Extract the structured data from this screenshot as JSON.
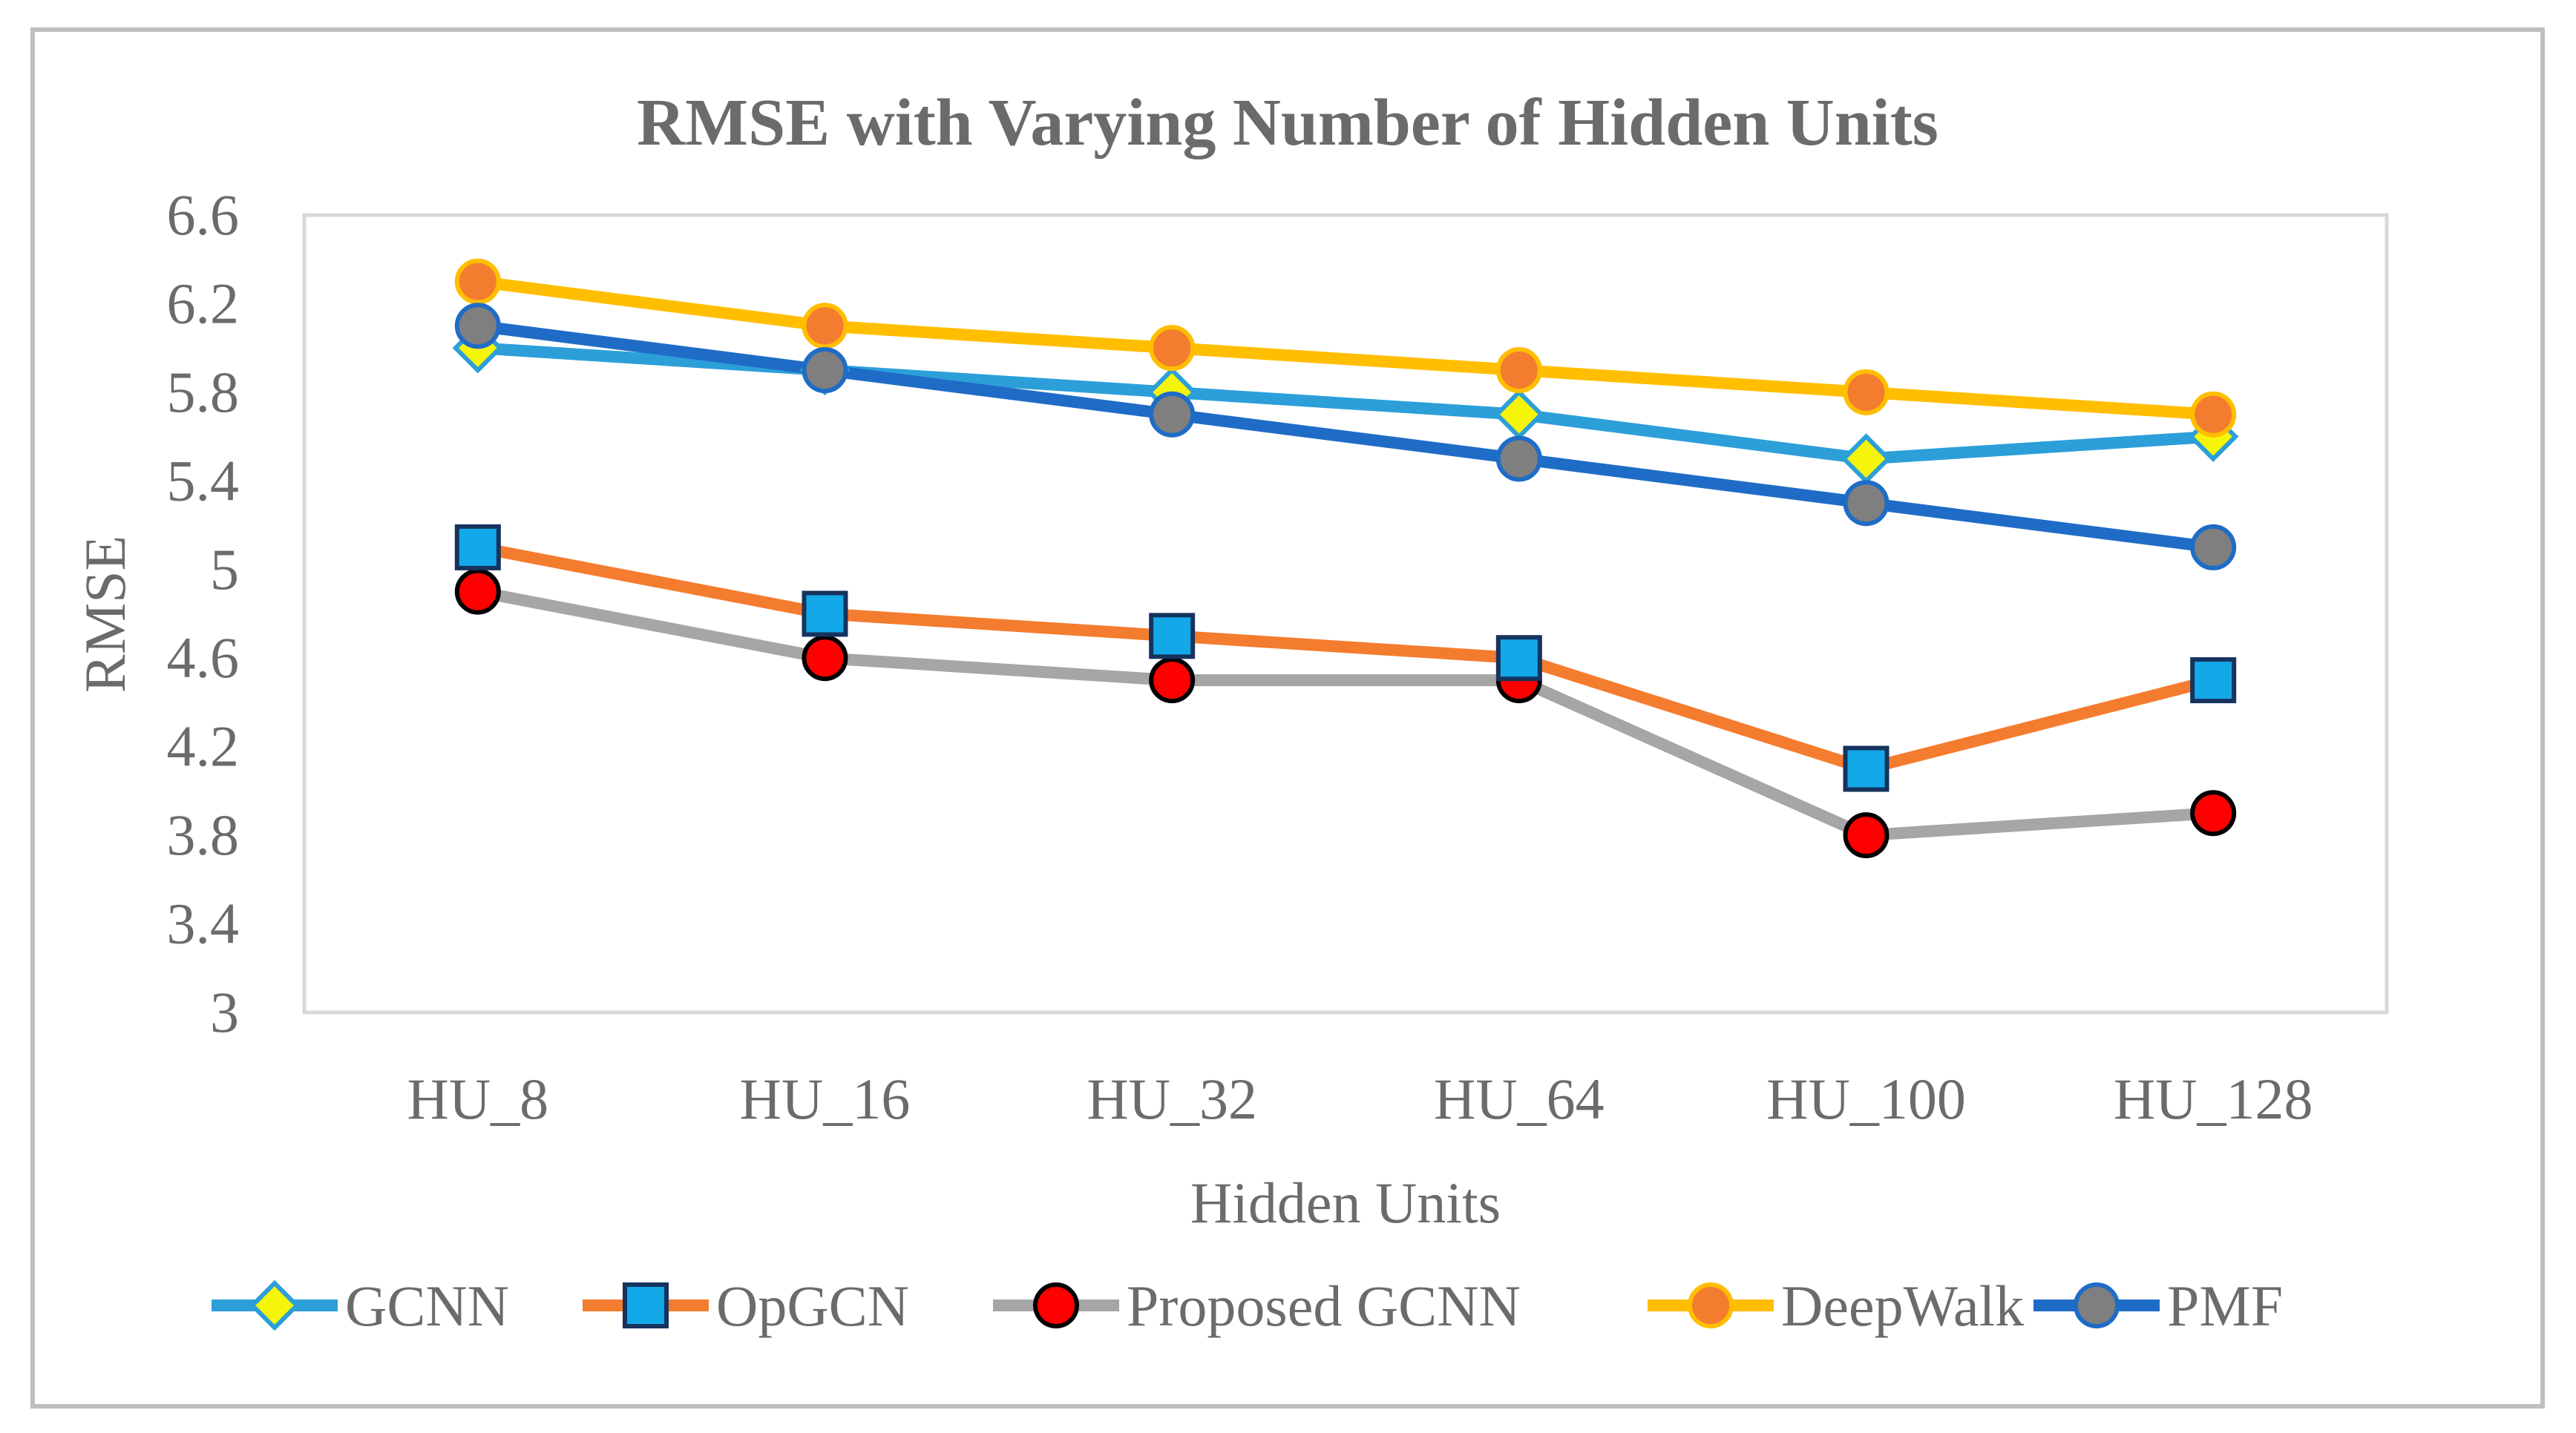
{
  "chart_data": {
    "type": "line",
    "title": "RMSE with Varying Number of Hidden Units",
    "xlabel": "Hidden Units",
    "ylabel": "RMSE",
    "categories": [
      "HU_8",
      "HU_16",
      "HU_32",
      "HU_64",
      "HU_100",
      "HU_128"
    ],
    "ylim": [
      3,
      6.6
    ],
    "yticks": [
      "3",
      "3.4",
      "3.8",
      "4.2",
      "4.6",
      "5",
      "5.4",
      "5.8",
      "6.2",
      "6.6"
    ],
    "grid": false,
    "legend_position": "bottom",
    "series": [
      {
        "name": "GCNN",
        "values": [
          6.0,
          5.9,
          5.8,
          5.7,
          5.5,
          5.6
        ],
        "line_color": "#2c9fd9",
        "marker": "diamond",
        "marker_fill": "#f5f50a",
        "marker_stroke": "#2c9fd9"
      },
      {
        "name": "OpGCN",
        "values": [
          5.1,
          4.8,
          4.7,
          4.6,
          4.1,
          4.5
        ],
        "line_color": "#f47c2e",
        "marker": "square",
        "marker_fill": "#13a8e8",
        "marker_stroke": "#16335e"
      },
      {
        "name": "Proposed GCNN",
        "values": [
          4.9,
          4.6,
          4.5,
          4.5,
          3.8,
          3.9
        ],
        "line_color": "#a6a6a6",
        "marker": "circle",
        "marker_fill": "#ff0000",
        "marker_stroke": "#000000"
      },
      {
        "name": "DeepWalk",
        "values": [
          6.3,
          6.1,
          6.0,
          5.9,
          5.8,
          5.7
        ],
        "line_color": "#ffbe00",
        "marker": "circle",
        "marker_fill": "#f47c2e",
        "marker_stroke": "#ffbe00"
      },
      {
        "name": "PMF",
        "values": [
          6.1,
          5.9,
          5.7,
          5.5,
          5.3,
          5.1
        ],
        "line_color": "#1f6cc6",
        "marker": "circle",
        "marker_fill": "#7f7f7f",
        "marker_stroke": "#1f6cc6"
      }
    ],
    "draw_order": [
      "Proposed GCNN",
      "OpGCN",
      "GCNN",
      "DeepWalk",
      "PMF"
    ]
  }
}
